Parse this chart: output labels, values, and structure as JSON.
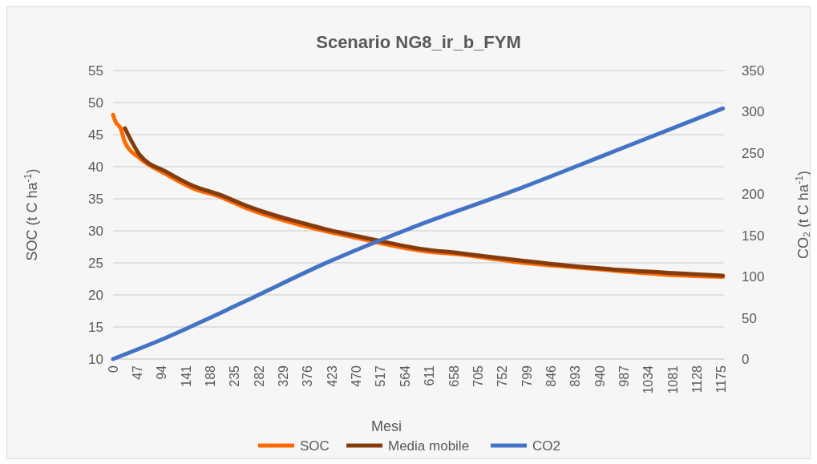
{
  "chart_data": {
    "type": "line",
    "title": "Scenario   NG8_ir_b_FYM",
    "xlabel": "Mesi",
    "ylabel": "SOC (t C ha$^{-1}$)",
    "y2label": "CO₂ (t C ha$^{-1}$)",
    "xlim": [
      0,
      1180
    ],
    "xticks": [
      0,
      47,
      94,
      141,
      188,
      235,
      282,
      329,
      376,
      423,
      470,
      517,
      564,
      611,
      658,
      705,
      752,
      799,
      846,
      893,
      940,
      987,
      1034,
      1081,
      1128,
      1175
    ],
    "ylim": [
      10,
      55
    ],
    "yticks": [
      10,
      15,
      20,
      25,
      30,
      35,
      40,
      45,
      50,
      55
    ],
    "y2lim": [
      0,
      350
    ],
    "y2ticks": [
      0,
      50,
      100,
      150,
      200,
      250,
      300,
      350
    ],
    "grid": "y",
    "legend": "bottom",
    "line_style": "solid",
    "marker": "none",
    "series": [
      {
        "name": "SOC",
        "color": "#ff6a00",
        "x": [
          0,
          5,
          15,
          23,
          52,
          103,
          155,
          207,
          258,
          309,
          362,
          413,
          464,
          516,
          593,
          671,
          773,
          876,
          980,
          1082,
          1178
        ],
        "values": [
          48.1,
          47,
          45.9,
          43.8,
          41.3,
          38.8,
          36.6,
          35.3,
          33.5,
          32.1,
          30.9,
          29.9,
          29,
          28.1,
          26.9,
          26.3,
          25.2,
          24.4,
          23.7,
          23.1,
          22.8
        ]
      },
      {
        "name": "Media mobile",
        "color": "#843c0c",
        "x": [
          23,
          52,
          103,
          155,
          207,
          258,
          309,
          362,
          413,
          464,
          516,
          593,
          671,
          773,
          876,
          980,
          1082,
          1178
        ],
        "values": [
          46,
          41.8,
          39.2,
          37,
          35.6,
          33.9,
          32.5,
          31.3,
          30.2,
          29.3,
          28.4,
          27.2,
          26.5,
          25.5,
          24.6,
          23.9,
          23.4,
          23
        ]
      },
      {
        "name": "CO2",
        "color": "#4472c4",
        "axis": "y2",
        "x": [
          0,
          103,
          258,
          413,
          580,
          773,
          960,
          1178
        ],
        "values": [
          0,
          26,
          71,
          117,
          160,
          204,
          250,
          304
        ]
      }
    ]
  }
}
